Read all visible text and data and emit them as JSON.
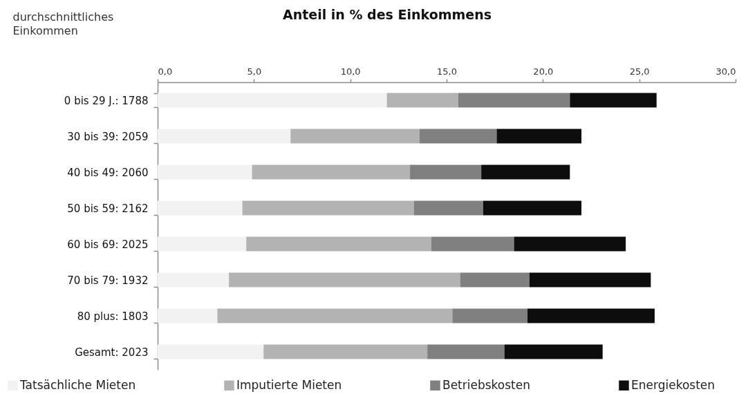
{
  "chart_data": {
    "type": "bar",
    "orientation": "horizontal",
    "stacked": true,
    "title": "Anteil in % des Einkommens",
    "ylabel": "durchschnittliches Einkommen",
    "categories": [
      "0 bis 29 J.: 1788",
      "30 bis 39: 2059",
      "40 bis 49: 2060",
      "50 bis 59: 2162",
      "60 bis 69: 2025",
      "70 bis 79: 1932",
      "80 plus: 1803",
      "Gesamt: 2023"
    ],
    "series": [
      {
        "name": "Tatsächliche Mieten",
        "color": "#f2f2f2",
        "values": [
          11.9,
          6.9,
          4.9,
          4.4,
          4.6,
          3.7,
          3.1,
          5.5
        ]
      },
      {
        "name": "Imputierte Mieten",
        "color": "#b3b3b3",
        "values": [
          3.7,
          6.7,
          8.2,
          8.9,
          9.6,
          12.0,
          12.2,
          8.5
        ]
      },
      {
        "name": "Betriebskosten",
        "color": "#808080",
        "values": [
          5.8,
          4.0,
          3.7,
          3.6,
          4.3,
          3.6,
          3.9,
          4.0
        ]
      },
      {
        "name": "Energiekosten",
        "color": "#0d0d0d",
        "values": [
          4.5,
          4.4,
          4.6,
          5.1,
          5.8,
          6.3,
          6.6,
          5.1
        ]
      }
    ],
    "xlim": [
      0,
      30
    ],
    "xticks": [
      {
        "value": 0,
        "label": "0,0"
      },
      {
        "value": 5,
        "label": "5,0"
      },
      {
        "value": 10,
        "label": "10,0"
      },
      {
        "value": 15,
        "label": "15,0"
      },
      {
        "value": 20,
        "label": "20,0"
      },
      {
        "value": 25,
        "label": "25,0"
      },
      {
        "value": 30,
        "label": "30,0"
      }
    ],
    "grid": false,
    "legend": "bottom"
  }
}
